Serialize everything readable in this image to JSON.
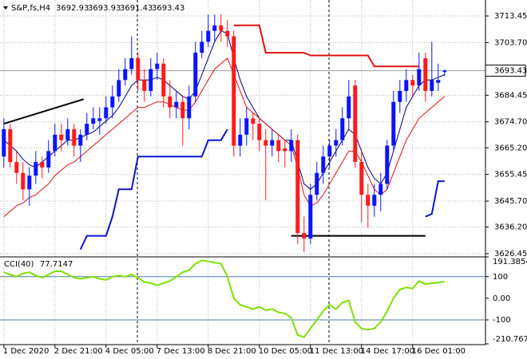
{
  "chart_data": {
    "type": "candlestick",
    "symbol": "S&P,fs,H4",
    "up_color": "#0a14ff",
    "down_color": "#ff1a1a",
    "xlim": [
      -0.6,
      75.4
    ],
    "xticks": [
      {
        "value": 0,
        "label": "1 Dec 2020"
      },
      {
        "value": 8,
        "label": "2 Dec 21:00"
      },
      {
        "value": 16,
        "label": "4 Dec 05:00"
      },
      {
        "value": 24,
        "label": "7 Dec 13:00"
      },
      {
        "value": 32,
        "label": "8 Dec 21:00"
      },
      {
        "value": 40,
        "label": "10 Dec 05:00"
      },
      {
        "value": 48,
        "label": "11 Dec 13:00"
      },
      {
        "value": 56,
        "label": "14 Dec 17:00"
      },
      {
        "value": 64,
        "label": "16 Dec 01:00"
      }
    ],
    "ylim": [
      3625.28,
      3719.29
    ],
    "yticks": [
      3713.45,
      {
        "value": 3703.7,
        "label": "3703.70"
      },
      3684.45,
      {
        "value": 3674.7,
        "label": "3674.70"
      },
      {
        "value": 3665.2,
        "label": "3665.20"
      },
      3655.45,
      {
        "value": 3645.7,
        "label": "3645.70"
      },
      {
        "value": 3636.2,
        "label": "3636.20"
      },
      3626.45
    ],
    "grid": true,
    "candles": [
      [
        3662,
        3676,
        3658,
        3672
      ],
      [
        3672,
        3674,
        3658,
        3660
      ],
      [
        3660,
        3664,
        3652,
        3656
      ],
      [
        3656,
        3660,
        3646,
        3650
      ],
      [
        3650,
        3658,
        3644,
        3655
      ],
      [
        3655,
        3664,
        3652,
        3660
      ],
      [
        3660,
        3662,
        3654,
        3658
      ],
      [
        3658,
        3668,
        3656,
        3664
      ],
      [
        3664,
        3674,
        3662,
        3670
      ],
      [
        3670,
        3674,
        3664,
        3668
      ],
      [
        3668,
        3676,
        3666,
        3672
      ],
      [
        3672,
        3674,
        3662,
        3666
      ],
      [
        3666,
        3672,
        3660,
        3670
      ],
      [
        3670,
        3678,
        3668,
        3674
      ],
      [
        3674,
        3680,
        3672,
        3676
      ],
      [
        3675,
        3680,
        3670,
        3676
      ],
      [
        3676,
        3684,
        3674,
        3680
      ],
      [
        3680,
        3688,
        3676,
        3684
      ],
      [
        3684,
        3694,
        3682,
        3690
      ],
      [
        3690,
        3698,
        3688,
        3694
      ],
      [
        3694,
        3706,
        3692,
        3698
      ],
      [
        3698,
        3700,
        3686,
        3690
      ],
      [
        3690,
        3694,
        3682,
        3686
      ],
      [
        3686,
        3698,
        3684,
        3694
      ],
      [
        3694,
        3700,
        3690,
        3696
      ],
      [
        3696,
        3698,
        3680,
        3684
      ],
      [
        3684,
        3690,
        3676,
        3680
      ],
      [
        3680,
        3686,
        3676,
        3682
      ],
      [
        3682,
        3684,
        3666,
        3676
      ],
      [
        3676,
        3688,
        3672,
        3684
      ],
      [
        3684,
        3704,
        3682,
        3700
      ],
      [
        3700,
        3708,
        3698,
        3704
      ],
      [
        3704,
        3714,
        3702,
        3708
      ],
      [
        3708,
        3714,
        3704,
        3710
      ],
      [
        3710,
        3714,
        3704,
        3708
      ],
      [
        3708,
        3712,
        3702,
        3706
      ],
      [
        3706,
        3708,
        3662,
        3666
      ],
      [
        3666,
        3676,
        3662,
        3670
      ],
      [
        3670,
        3680,
        3666,
        3676
      ],
      [
        3676,
        3678,
        3668,
        3674
      ],
      [
        3674,
        3676,
        3664,
        3668
      ],
      [
        3668,
        3672,
        3646,
        3666
      ],
      [
        3666,
        3672,
        3662,
        3668
      ],
      [
        3668,
        3670,
        3660,
        3664
      ],
      [
        3665,
        3668,
        3658,
        3664
      ],
      [
        3664,
        3672,
        3660,
        3668
      ],
      [
        3668,
        3670,
        3630,
        3634
      ],
      [
        3634,
        3640,
        3627,
        3632
      ],
      [
        3632,
        3652,
        3630,
        3648
      ],
      [
        3648,
        3660,
        3646,
        3656
      ],
      [
        3656,
        3666,
        3652,
        3662
      ],
      [
        3662,
        3668,
        3658,
        3666
      ],
      [
        3666,
        3672,
        3662,
        3668
      ],
      [
        3668,
        3680,
        3666,
        3676
      ],
      [
        3676,
        3690,
        3672,
        3684
      ],
      [
        3688,
        3690,
        3658,
        3660
      ],
      [
        3660,
        3664,
        3638,
        3648
      ],
      [
        3648,
        3652,
        3636,
        3644
      ],
      [
        3644,
        3652,
        3640,
        3648
      ],
      [
        3648,
        3656,
        3642,
        3652
      ],
      [
        3652,
        3668,
        3650,
        3666
      ],
      [
        3666,
        3686,
        3664,
        3682
      ],
      [
        3682,
        3690,
        3678,
        3686
      ],
      [
        3686,
        3694,
        3682,
        3690
      ],
      [
        3690,
        3692,
        3684,
        3688
      ],
      [
        3688,
        3700,
        3686,
        3694
      ],
      [
        3698,
        3700,
        3682,
        3686
      ],
      [
        3686,
        3704,
        3684,
        3690
      ],
      [
        3689,
        3696,
        3686,
        3690
      ],
      [
        3692.93,
        3693.93,
        3691.43,
        3693.43
      ]
    ],
    "overlays": [
      {
        "color": "#00007f",
        "width": 1,
        "values": [
          3668,
          3666,
          3664,
          3661,
          3659,
          3658,
          3660,
          3662,
          3664,
          3666,
          3668,
          3668,
          3669,
          3670,
          3671,
          3673,
          3675,
          3677,
          3680,
          3684,
          3688,
          3690,
          3690,
          3690,
          3691,
          3690,
          3688,
          3686,
          3684,
          3683,
          3686,
          3692,
          3698,
          3704,
          3708,
          3707,
          3698,
          3690,
          3684,
          3680,
          3676,
          3674,
          3672,
          3670,
          3668,
          3668,
          3660,
          3652,
          3650,
          3652,
          3656,
          3660,
          3664,
          3668,
          3672,
          3670,
          3664,
          3658,
          3654,
          3652,
          3656,
          3664,
          3672,
          3680,
          3684,
          3688,
          3690,
          3690,
          3691,
          3692
        ]
      },
      {
        "color": "#e01010",
        "width": 1,
        "values": [
          3640,
          3642,
          3644,
          3645,
          3647,
          3648,
          3650,
          3652,
          3655,
          3657,
          3659,
          3660,
          3662,
          3664,
          3666,
          3668,
          3670,
          3672,
          3674,
          3676,
          3678,
          3680,
          3680,
          3681,
          3682,
          3682,
          3681,
          3680,
          3679,
          3679,
          3682,
          3686,
          3690,
          3694,
          3696,
          3698,
          3692,
          3686,
          3680,
          3678,
          3676,
          3674,
          3672,
          3670,
          3668,
          3666,
          3658,
          3648,
          3644,
          3645,
          3648,
          3652,
          3656,
          3660,
          3664,
          3664,
          3660,
          3655,
          3650,
          3648,
          3650,
          3656,
          3662,
          3668,
          3672,
          3676,
          3678,
          3680,
          3682,
          3684
        ]
      },
      {
        "color": "#e01010",
        "width": 2,
        "values": [
          null,
          null,
          null,
          null,
          null,
          null,
          null,
          null,
          null,
          null,
          null,
          null,
          null,
          null,
          null,
          null,
          null,
          null,
          null,
          null,
          null,
          null,
          null,
          null,
          null,
          null,
          null,
          null,
          null,
          null,
          null,
          null,
          null,
          null,
          null,
          null,
          3710,
          3710,
          3710,
          3710,
          3710,
          3700,
          3700,
          3700,
          3700,
          3700,
          3700,
          3700,
          3699,
          3699,
          3699,
          3699,
          3699,
          3699,
          3699,
          3699,
          3699,
          3699,
          3695,
          3695,
          3695,
          3695,
          3695,
          3695,
          3695,
          3695,
          null,
          null,
          null,
          null
        ]
      },
      {
        "color": "#0a14d0",
        "width": 2,
        "values": [
          null,
          null,
          null,
          null,
          null,
          null,
          null,
          null,
          null,
          null,
          null,
          null,
          3628,
          3633,
          3633,
          3633,
          3633,
          3640,
          3650,
          3650,
          3650,
          3662,
          3662,
          3662,
          3662,
          3662,
          3662,
          3662,
          3662,
          3662,
          3662,
          3662,
          3668,
          3668,
          3668,
          3672,
          null,
          null,
          null,
          null,
          null,
          null,
          null,
          null,
          null,
          null,
          null,
          null,
          null,
          null,
          null,
          null,
          null,
          null,
          null,
          null,
          null,
          null,
          null,
          null,
          null,
          null,
          null,
          null,
          null,
          null,
          3640,
          3641,
          3653,
          3653
        ]
      }
    ],
    "trendlines": [
      {
        "color": "#000000",
        "x": [
          0,
          12.5
        ],
        "values": [
          3674,
          3683
        ]
      },
      {
        "color": "#000000",
        "x": [
          45,
          66
        ],
        "values": [
          3633,
          3633
        ]
      }
    ],
    "cci": {
      "name": "CCI(40)",
      "color": "#7fe000",
      "values": [
        120,
        110,
        100,
        115,
        120,
        105,
        95,
        110,
        125,
        125,
        110,
        95,
        90,
        95,
        100,
        90,
        85,
        100,
        105,
        100,
        110,
        95,
        75,
        70,
        60,
        70,
        80,
        100,
        120,
        130,
        160,
        175,
        170,
        165,
        160,
        100,
        0,
        -30,
        -40,
        -50,
        -40,
        -55,
        -50,
        -65,
        -70,
        -90,
        -170,
        -180,
        -140,
        -100,
        -60,
        -30,
        -50,
        -20,
        -10,
        -110,
        -140,
        -145,
        -140,
        -110,
        -60,
        0,
        40,
        50,
        45,
        80,
        65,
        70,
        72,
        77.7147
      ]
    },
    "y2lim": [
      -210.7677,
      191.3854
    ],
    "y2ticks": [
      191.3854,
      100,
      {
        "value": 0,
        "label": "0.00"
      },
      -100,
      -210.7677
    ],
    "level_lines": [
      100,
      -100
    ]
  }
}
